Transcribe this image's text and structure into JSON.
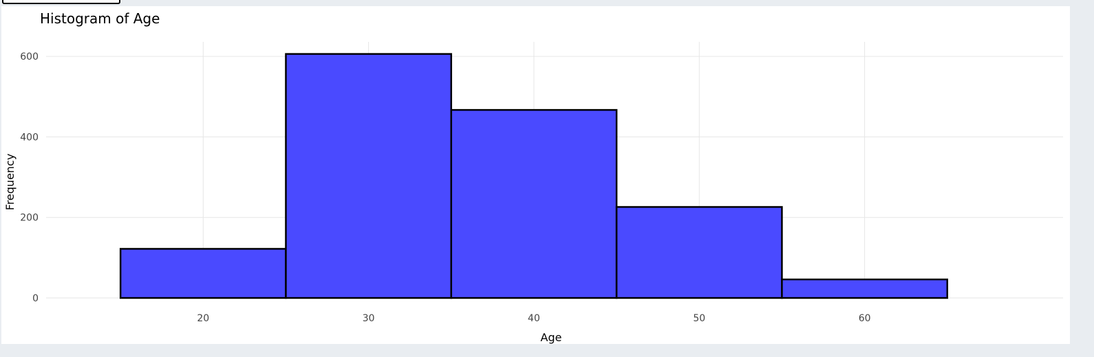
{
  "chart_data": {
    "type": "bar",
    "title": "Histogram of Age",
    "xlabel": "Age",
    "ylabel": "Frequency",
    "bins": [
      {
        "start": 15,
        "end": 25,
        "value": 122
      },
      {
        "start": 25,
        "end": 35,
        "value": 606
      },
      {
        "start": 35,
        "end": 45,
        "value": 467
      },
      {
        "start": 45,
        "end": 55,
        "value": 226
      },
      {
        "start": 55,
        "end": 65,
        "value": 46
      }
    ],
    "xlim": [
      10.5,
      72
    ],
    "ylim": [
      0,
      636
    ],
    "xticks": [
      20,
      30,
      40,
      50,
      60
    ],
    "yticks": [
      0,
      200,
      400,
      600
    ],
    "grid": true,
    "colors": {
      "bar_fill": "#4a4aff",
      "bar_stroke": "#000000",
      "grid": "#e6e6e6"
    }
  }
}
